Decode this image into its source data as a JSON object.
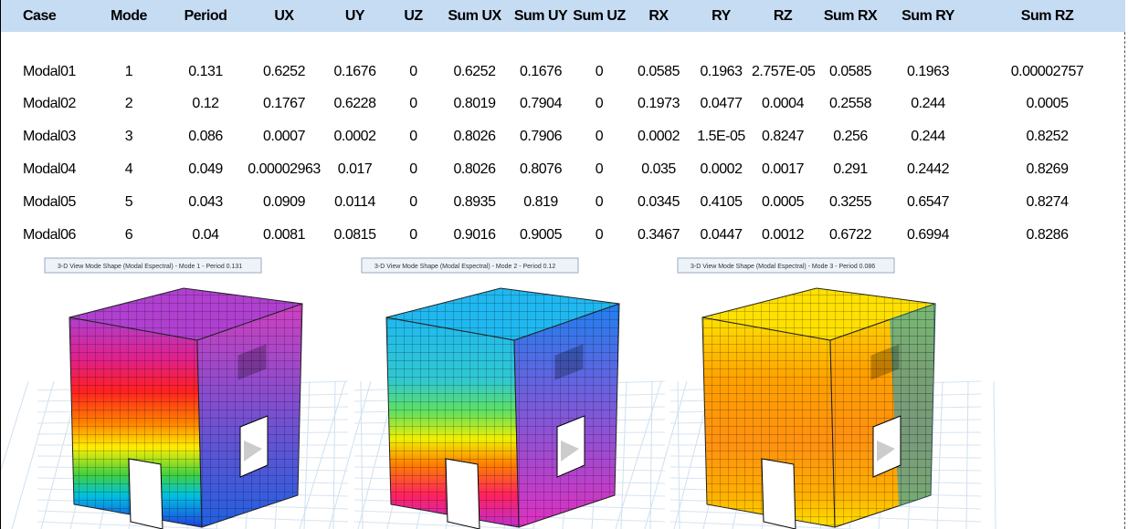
{
  "table": {
    "header": [
      "Case",
      "Mode",
      "Period",
      "UX",
      "UY",
      "UZ",
      "Sum UX",
      "Sum UY",
      "Sum UZ",
      "RX",
      "RY",
      "RZ",
      "Sum RX",
      "Sum RY",
      "Sum RZ"
    ],
    "rows": [
      [
        "Modal01",
        "1",
        "0.131",
        "0.6252",
        "0.1676",
        "0",
        "0.6252",
        "0.1676",
        "0",
        "0.0585",
        "0.1963",
        "2.757E-05",
        "0.0585",
        "0.1963",
        "0.00002757"
      ],
      [
        "Modal02",
        "2",
        "0.12",
        "0.1767",
        "0.6228",
        "0",
        "0.8019",
        "0.7904",
        "0",
        "0.1973",
        "0.0477",
        "0.0004",
        "0.2558",
        "0.244",
        "0.0005"
      ],
      [
        "Modal03",
        "3",
        "0.086",
        "0.0007",
        "0.0002",
        "0",
        "0.8026",
        "0.7906",
        "0",
        "0.0002",
        "1.5E-05",
        "0.8247",
        "0.256",
        "0.244",
        "0.8252"
      ],
      [
        "Modal04",
        "4",
        "0.049",
        "0.00002963",
        "0.017",
        "0",
        "0.8026",
        "0.8076",
        "0",
        "0.035",
        "0.0002",
        "0.0017",
        "0.291",
        "0.2442",
        "0.8269"
      ],
      [
        "Modal05",
        "5",
        "0.043",
        "0.0909",
        "0.0114",
        "0",
        "0.8935",
        "0.819",
        "0",
        "0.0345",
        "0.4105",
        "0.0005",
        "0.3255",
        "0.6547",
        "0.8274"
      ],
      [
        "Modal06",
        "6",
        "0.04",
        "0.0081",
        "0.0815",
        "0",
        "0.9016",
        "0.9005",
        "0",
        "0.3467",
        "0.0447",
        "0.0012",
        "0.6722",
        "0.6994",
        "0.8286"
      ]
    ]
  },
  "views": [
    {
      "title": "3-D View  Mode Shape (Modal Espectral) - Mode 1 - Period 0.131"
    },
    {
      "title": "3-D View  Mode Shape (Modal Espectral) - Mode 2 - Period 0.12"
    },
    {
      "title": "3-D View  Mode Shape (Modal Espectral) - Mode 3 - Period 0.086"
    }
  ]
}
